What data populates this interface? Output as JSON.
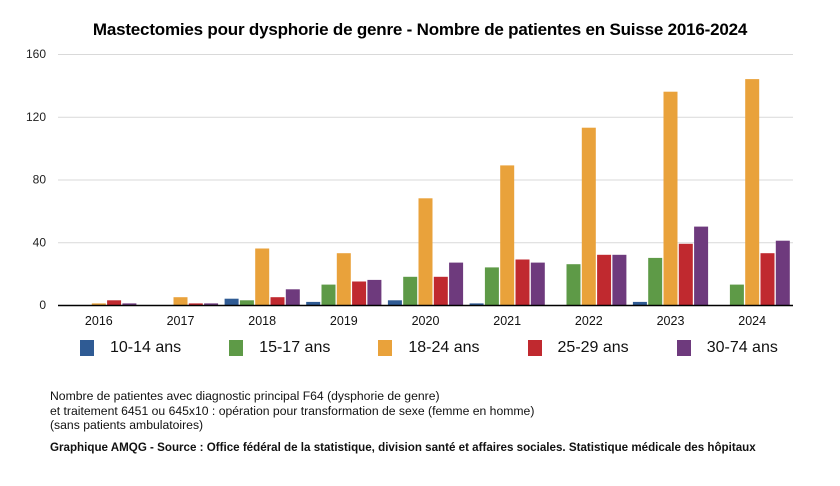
{
  "chart_data": {
    "type": "bar",
    "title": "Mastectomies pour dysphorie de genre - Nombre de patientes en Suisse 2016-2024",
    "xlabel": "",
    "ylabel": "",
    "ylim": [
      0,
      160
    ],
    "yticks": [
      0,
      40,
      80,
      120,
      160
    ],
    "grid": true,
    "legend_position": "bottom",
    "categories": [
      "2016",
      "2017",
      "2018",
      "2019",
      "2020",
      "2021",
      "2022",
      "2023",
      "2024"
    ],
    "series": [
      {
        "name": "10-14 ans",
        "color": "#2f5b94",
        "values": [
          0,
          0,
          4,
          2,
          3,
          1,
          0,
          2,
          0
        ]
      },
      {
        "name": "15-17 ans",
        "color": "#5e9a47",
        "values": [
          0,
          0,
          3,
          13,
          18,
          24,
          26,
          30,
          13
        ]
      },
      {
        "name": "18-24 ans",
        "color": "#e9a23b",
        "values": [
          1,
          5,
          36,
          33,
          68,
          89,
          113,
          136,
          144
        ]
      },
      {
        "name": "25-29 ans",
        "color": "#c0292f",
        "values": [
          3,
          1,
          5,
          15,
          18,
          29,
          32,
          39,
          33
        ]
      },
      {
        "name": "30-74 ans",
        "color": "#6e3a7d",
        "values": [
          1,
          1,
          10,
          16,
          27,
          27,
          32,
          50,
          41
        ]
      }
    ]
  },
  "notes": {
    "line1": "Nombre de patientes avec diagnostic principal F64 (dysphorie de genre)",
    "line2": "et traitement 6451 ou 645x10 : opération pour transformation de sexe (femme en homme)",
    "line3": "(sans patients ambulatoires)"
  },
  "source": "Graphique AMQG - Source : Office fédéral de la statistique, division santé et affaires sociales. Statistique médicale des hôpitaux"
}
